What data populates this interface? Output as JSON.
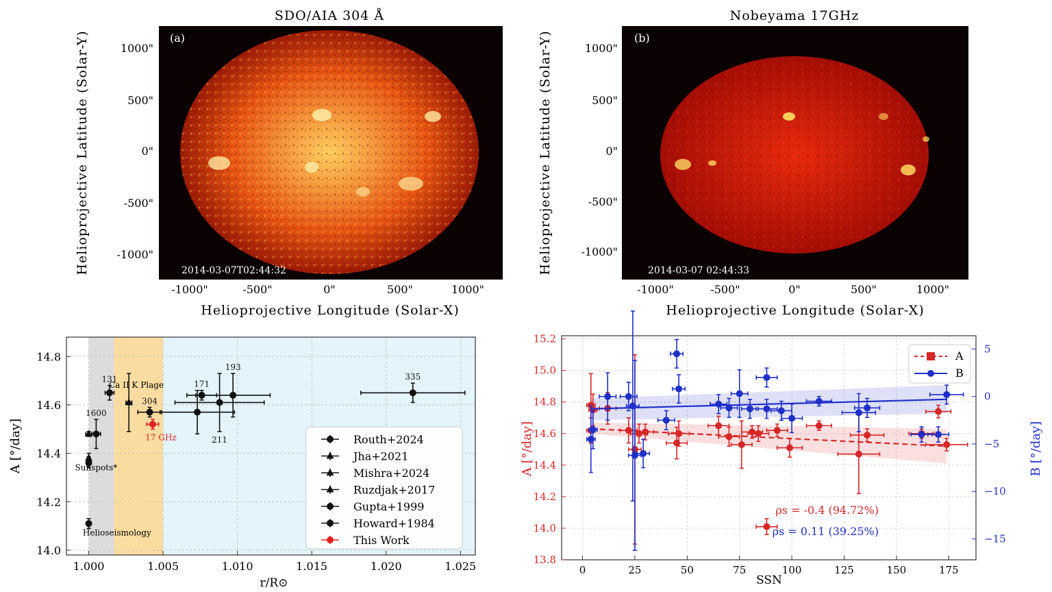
{
  "panels": {
    "a": {
      "title": "SDO/AIA  304  Å",
      "label": "(a)",
      "timestamp": "2014-03-07T02:44:32",
      "ylabel": "Helioprojective  Latitude  (Solar-Y)",
      "xlabel": "Helioprojective  Longitude  (Solar-X)",
      "yticks": [
        "1000\"",
        "500\"",
        "0\"",
        "-500\"",
        "-1000\""
      ],
      "xticks": [
        "-1000\"",
        "-500\"",
        "0\"",
        "500\"",
        "1000\""
      ],
      "colors": {
        "disk_center": "#ffcf60",
        "disk_mid": "#e65512",
        "disk_edge": "#9b1a05",
        "background": "#0a0202"
      }
    },
    "b": {
      "title": "Nobeyama  17GHz",
      "label": "(b)",
      "timestamp": "2014-03-07   02:44:33",
      "ylabel": "Helioprojective  Latitude  (Solar-Y)",
      "xlabel": "Helioprojective  Longitude  (Solar-X)",
      "yticks": [
        "1000\"",
        "500\"",
        "0\"",
        "-500\"",
        "-1000\""
      ],
      "xticks": [
        "-1000\"",
        "-500\"",
        "0\"",
        "500\"",
        "1000\""
      ],
      "colors": {
        "disk_center": "#e62a0c",
        "disk_edge": "#a30d05",
        "background": "#0a0202"
      }
    }
  },
  "chart_data": [
    {
      "type": "scatter",
      "panel": "c",
      "xlabel": "r/R⊙",
      "ylabel": "A [°/day]",
      "xlim": [
        0.9985,
        1.026
      ],
      "ylim": [
        13.98,
        14.88
      ],
      "xticks": [
        "1.000",
        "1.005",
        "1.010",
        "1.015",
        "1.020",
        "1.025"
      ],
      "xtick_values": [
        1.0,
        1.005,
        1.01,
        1.015,
        1.02,
        1.025
      ],
      "yticks": [
        "14.0",
        "14.2",
        "14.4",
        "14.6",
        "14.8"
      ],
      "ytick_values": [
        14.0,
        14.2,
        14.4,
        14.6,
        14.8
      ],
      "grid": true,
      "legend_position": "bottom-right",
      "regions": [
        {
          "x0": 1.0,
          "x1": 1.0017,
          "color": "#dcdcdc"
        },
        {
          "x0": 1.0017,
          "x1": 1.005,
          "color": "#fbdca0"
        },
        {
          "x0": 1.005,
          "x1": 1.026,
          "color": "#e3f4fa"
        }
      ],
      "legend": [
        "Routh+2024",
        "Jha+2021",
        "Mishra+2024",
        "Ruzdjak+2017",
        "Gupta+1999",
        "Howard+1984",
        "This Work"
      ],
      "annotations": [
        {
          "text": "Ca  II  K  Plage",
          "x": 1.0032,
          "y": 14.67
        },
        {
          "text": "Sunspots*",
          "x": 1.0005,
          "y": 14.33
        },
        {
          "text": "Helioseismology",
          "x": 1.0019,
          "y": 14.06
        }
      ],
      "points": [
        {
          "x": 1.0,
          "y": 14.11,
          "xerr": 0.0001,
          "yerr": 0.02,
          "marker": "circle",
          "color": "#111111",
          "label": ""
        },
        {
          "x": 1.0,
          "y": 14.36,
          "xerr": 0.0001,
          "yerr": 0.02,
          "marker": "circle",
          "color": "#111111",
          "label": ""
        },
        {
          "x": 1.0,
          "y": 14.38,
          "xerr": 0.0001,
          "yerr": 0.02,
          "marker": "triangle",
          "color": "#111111",
          "label": ""
        },
        {
          "x": 1.0,
          "y": 14.48,
          "xerr": 0.0002,
          "yerr": 0.01,
          "marker": "triangle",
          "color": "#111111",
          "label": ""
        },
        {
          "x": 1.0005,
          "y": 14.48,
          "xerr": 0.0003,
          "yerr": 0.06,
          "marker": "circle",
          "color": "#111111",
          "label": "1600"
        },
        {
          "x": 1.0014,
          "y": 14.65,
          "xerr": 0.0003,
          "yerr": 0.03,
          "marker": "circle",
          "color": "#111111",
          "label": "131"
        },
        {
          "x": 1.0027,
          "y": 14.61,
          "xerr": 0.0002,
          "yerr": 0.12,
          "marker": "triangle",
          "color": "#111111",
          "label": ""
        },
        {
          "x": 1.0041,
          "y": 14.57,
          "xerr": 0.0008,
          "yerr": 0.02,
          "marker": "circle",
          "color": "#111111",
          "label": "304"
        },
        {
          "x": 1.0043,
          "y": 14.52,
          "xerr": 0.0004,
          "yerr": 0.02,
          "marker": "circle",
          "color": "#e02020",
          "label": "17  GHz"
        },
        {
          "x": 1.0073,
          "y": 14.57,
          "xerr": 0.0025,
          "yerr": 0.09,
          "marker": "circle",
          "color": "#111111",
          "label": ""
        },
        {
          "x": 1.0088,
          "y": 14.61,
          "xerr": 0.003,
          "yerr": 0.12,
          "marker": "circle",
          "color": "#111111",
          "label": "211"
        },
        {
          "x": 1.0097,
          "y": 14.64,
          "xerr": 0.0025,
          "yerr": 0.09,
          "marker": "circle",
          "color": "#111111",
          "label": "193"
        },
        {
          "x": 1.0076,
          "y": 14.64,
          "xerr": 0.001,
          "yerr": 0.02,
          "marker": "circle",
          "color": "#111111",
          "label": "171"
        },
        {
          "x": 1.0218,
          "y": 14.65,
          "xerr": 0.0035,
          "yerr": 0.04,
          "marker": "circle",
          "color": "#111111",
          "label": "335"
        }
      ]
    },
    {
      "type": "scatter",
      "panel": "d",
      "xlabel": "SSN",
      "ylabel": "A [°/day]",
      "ylabel_right": "B [°/day]",
      "xlim": [
        -10,
        188
      ],
      "ylim": [
        13.8,
        15.22
      ],
      "ylim_right": [
        -17.2,
        6.4
      ],
      "xticks": [
        "0",
        "25",
        "50",
        "75",
        "100",
        "125",
        "150",
        "175"
      ],
      "xtick_values": [
        0,
        25,
        50,
        75,
        100,
        125,
        150,
        175
      ],
      "yticks": [
        "13.8",
        "14.0",
        "14.2",
        "14.4",
        "14.6",
        "14.8",
        "15.0",
        "15.2"
      ],
      "ytick_values": [
        13.8,
        14.0,
        14.2,
        14.4,
        14.6,
        14.8,
        15.0,
        15.2
      ],
      "yticks_right": [
        "5",
        "0",
        "−5",
        "−10",
        "−15"
      ],
      "ytick_values_right": [
        5,
        0,
        -5,
        -10,
        -15
      ],
      "grid": true,
      "legend_position": "top-right",
      "correlations": [
        "ρs = -0.4  (94.72%)",
        "ρs = 0.11  (39.25%)"
      ],
      "series": [
        {
          "name": "A",
          "color": "#d62728",
          "axis": "left",
          "fit": {
            "x": [
              4,
              174
            ],
            "y": [
              14.63,
              14.52
            ]
          },
          "band": {
            "x": [
              4,
              174
            ],
            "upper": [
              14.67,
              14.63
            ],
            "lower": [
              14.6,
              14.41
            ]
          },
          "points": [
            {
              "x": 4,
              "y": 14.78,
              "xerr": 2,
              "yerr": 0.2
            },
            {
              "x": 5,
              "y": 14.75,
              "xerr": 2,
              "yerr": 0.1
            },
            {
              "x": 4,
              "y": 14.62,
              "xerr": 2,
              "yerr": 0.08
            },
            {
              "x": 12,
              "y": 14.76,
              "xerr": 4,
              "yerr": 0.1
            },
            {
              "x": 22,
              "y": 14.62,
              "xerr": 4,
              "yerr": 0.08
            },
            {
              "x": 25,
              "y": 14.5,
              "xerr": 3,
              "yerr": 0.6
            },
            {
              "x": 27,
              "y": 14.6,
              "xerr": 4,
              "yerr": 0.06
            },
            {
              "x": 30,
              "y": 14.61,
              "xerr": 4,
              "yerr": 0.05
            },
            {
              "x": 45,
              "y": 14.54,
              "xerr": 5,
              "yerr": 0.1
            },
            {
              "x": 46,
              "y": 14.6,
              "xerr": 5,
              "yerr": 0.08
            },
            {
              "x": 65,
              "y": 14.65,
              "xerr": 5,
              "yerr": 0.06
            },
            {
              "x": 70,
              "y": 14.58,
              "xerr": 5,
              "yerr": 0.06
            },
            {
              "x": 76,
              "y": 14.53,
              "xerr": 5,
              "yerr": 0.15
            },
            {
              "x": 81,
              "y": 14.61,
              "xerr": 5,
              "yerr": 0.04
            },
            {
              "x": 84,
              "y": 14.6,
              "xerr": 5,
              "yerr": 0.05
            },
            {
              "x": 88,
              "y": 14.01,
              "xerr": 5,
              "yerr": 0.05
            },
            {
              "x": 93,
              "y": 14.62,
              "xerr": 5,
              "yerr": 0.04
            },
            {
              "x": 99,
              "y": 14.51,
              "xerr": 6,
              "yerr": 0.06
            },
            {
              "x": 113,
              "y": 14.65,
              "xerr": 6,
              "yerr": 0.03
            },
            {
              "x": 132,
              "y": 14.47,
              "xerr": 10,
              "yerr": 0.25
            },
            {
              "x": 136,
              "y": 14.59,
              "xerr": 8,
              "yerr": 0.04
            },
            {
              "x": 162,
              "y": 14.6,
              "xerr": 6,
              "yerr": 0.03
            },
            {
              "x": 170,
              "y": 14.74,
              "xerr": 6,
              "yerr": 0.04
            },
            {
              "x": 174,
              "y": 14.53,
              "xerr": 10,
              "yerr": 0.04
            }
          ]
        },
        {
          "name": "B",
          "color": "#1f2fc8",
          "axis": "right",
          "fit": {
            "x": [
              4,
              174
            ],
            "y": [
              -1.3,
              -0.3
            ]
          },
          "band": {
            "x": [
              4,
              174
            ],
            "upper": [
              -0.2,
              1.2
            ],
            "lower": [
              -2.5,
              -1.8
            ]
          },
          "points": [
            {
              "x": 4,
              "y": -4.5,
              "xerr": 2,
              "yerr": 3.5
            },
            {
              "x": 5,
              "y": -3.5,
              "xerr": 2,
              "yerr": 2.0
            },
            {
              "x": 12,
              "y": 0,
              "xerr": 4,
              "yerr": 2.5
            },
            {
              "x": 22,
              "y": 0,
              "xerr": 4,
              "yerr": 1.5
            },
            {
              "x": 24,
              "y": -1.0,
              "xerr": 3,
              "yerr": 10.0
            },
            {
              "x": 25,
              "y": -6.2,
              "xerr": 3,
              "yerr": 10.0
            },
            {
              "x": 29,
              "y": -6.0,
              "xerr": 3,
              "yerr": 1.5
            },
            {
              "x": 40,
              "y": -2.5,
              "xerr": 4,
              "yerr": 1.0
            },
            {
              "x": 45,
              "y": 4.5,
              "xerr": 3,
              "yerr": 1.5
            },
            {
              "x": 46,
              "y": 0.8,
              "xerr": 3,
              "yerr": 1.5
            },
            {
              "x": 65,
              "y": -0.8,
              "xerr": 4,
              "yerr": 1.0
            },
            {
              "x": 70,
              "y": -1.2,
              "xerr": 4,
              "yerr": 1.0
            },
            {
              "x": 75,
              "y": 0.3,
              "xerr": 4,
              "yerr": 2.5
            },
            {
              "x": 80,
              "y": -1.3,
              "xerr": 4,
              "yerr": 1.0
            },
            {
              "x": 88,
              "y": -1.3,
              "xerr": 5,
              "yerr": 1.0
            },
            {
              "x": 88,
              "y": 2.0,
              "xerr": 5,
              "yerr": 1.0
            },
            {
              "x": 95,
              "y": -1.5,
              "xerr": 5,
              "yerr": 1.0
            },
            {
              "x": 100,
              "y": -2.3,
              "xerr": 5,
              "yerr": 1.5
            },
            {
              "x": 113,
              "y": -0.5,
              "xerr": 6,
              "yerr": 0.5
            },
            {
              "x": 132,
              "y": -1.7,
              "xerr": 8,
              "yerr": 2.0
            },
            {
              "x": 136,
              "y": -1.2,
              "xerr": 6,
              "yerr": 1.0
            },
            {
              "x": 162,
              "y": -4.0,
              "xerr": 5,
              "yerr": 0.8
            },
            {
              "x": 170,
              "y": -4.0,
              "xerr": 5,
              "yerr": 0.8
            },
            {
              "x": 174,
              "y": 0.2,
              "xerr": 8,
              "yerr": 1.0
            }
          ]
        }
      ]
    }
  ]
}
